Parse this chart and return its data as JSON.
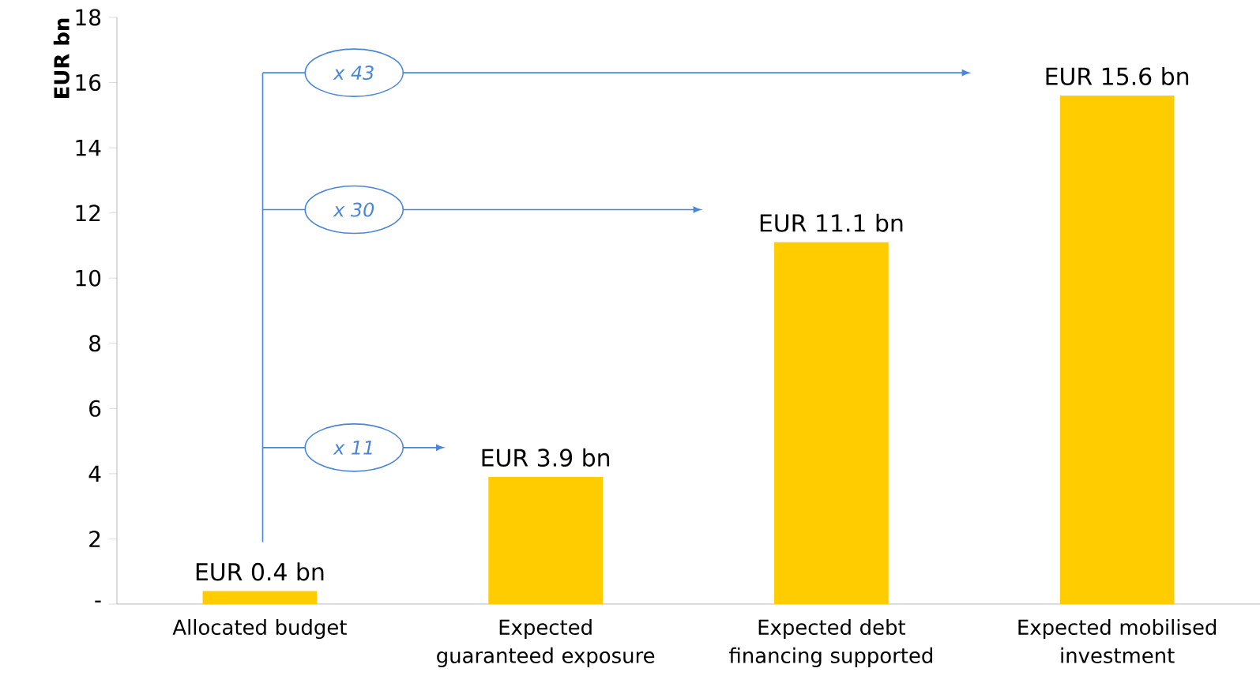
{
  "chart_data": {
    "type": "bar",
    "ylabel": "EUR bn",
    "categories": [
      "Allocated budget",
      "Expected guaranteed exposure",
      "Expected debt financing supported",
      "Expected mobilised investment"
    ],
    "values": [
      0.4,
      3.9,
      11.1,
      15.6
    ],
    "color": "#ffcc00",
    "value_labels": [
      "EUR 0.4 bn",
      "EUR 3.9 bn",
      "EUR 11.1 bn",
      "EUR 15.6 bn"
    ],
    "ylim": [
      0,
      18
    ],
    "yticks": [
      {
        "value": 0,
        "label": "-"
      },
      2,
      4,
      6,
      8,
      10,
      12,
      14,
      16,
      18
    ],
    "grid": false,
    "annotations": [
      "x 43",
      "x 30",
      "x 11"
    ]
  }
}
